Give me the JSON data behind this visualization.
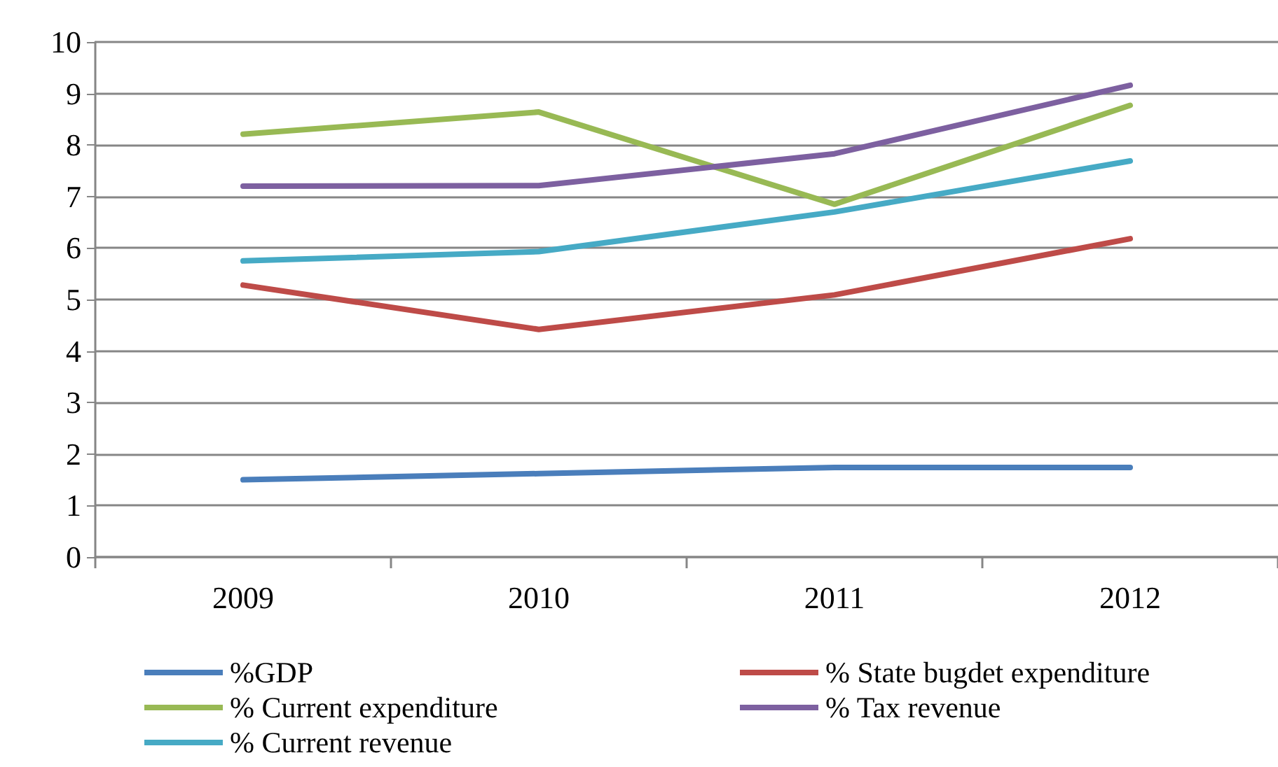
{
  "chart_data": {
    "type": "line",
    "categories": [
      "2009",
      "2010",
      "2011",
      "2012"
    ],
    "series": [
      {
        "name": "%GDP",
        "color": "#4a7ebb",
        "values": [
          1.5,
          1.62,
          1.74,
          1.74
        ]
      },
      {
        "name": "% State bugdet expenditure",
        "color": "#be4b48",
        "values": [
          5.28,
          4.42,
          5.09,
          6.18
        ]
      },
      {
        "name": "% Current expenditure",
        "color": "#98b954",
        "values": [
          8.21,
          8.64,
          6.85,
          8.77
        ]
      },
      {
        "name": "% Tax revenue",
        "color": "#7d60a0",
        "values": [
          7.2,
          7.21,
          7.83,
          9.16
        ]
      },
      {
        "name": "% Current revenue",
        "color": "#46aac5",
        "values": [
          5.75,
          5.93,
          6.7,
          7.69
        ]
      }
    ],
    "ylim": [
      0,
      10
    ],
    "yticks": [
      0,
      1,
      2,
      3,
      4,
      5,
      6,
      7,
      8,
      9,
      10
    ],
    "grid": "y",
    "legend": "bottom",
    "marker": "none",
    "line_style": "solid"
  }
}
